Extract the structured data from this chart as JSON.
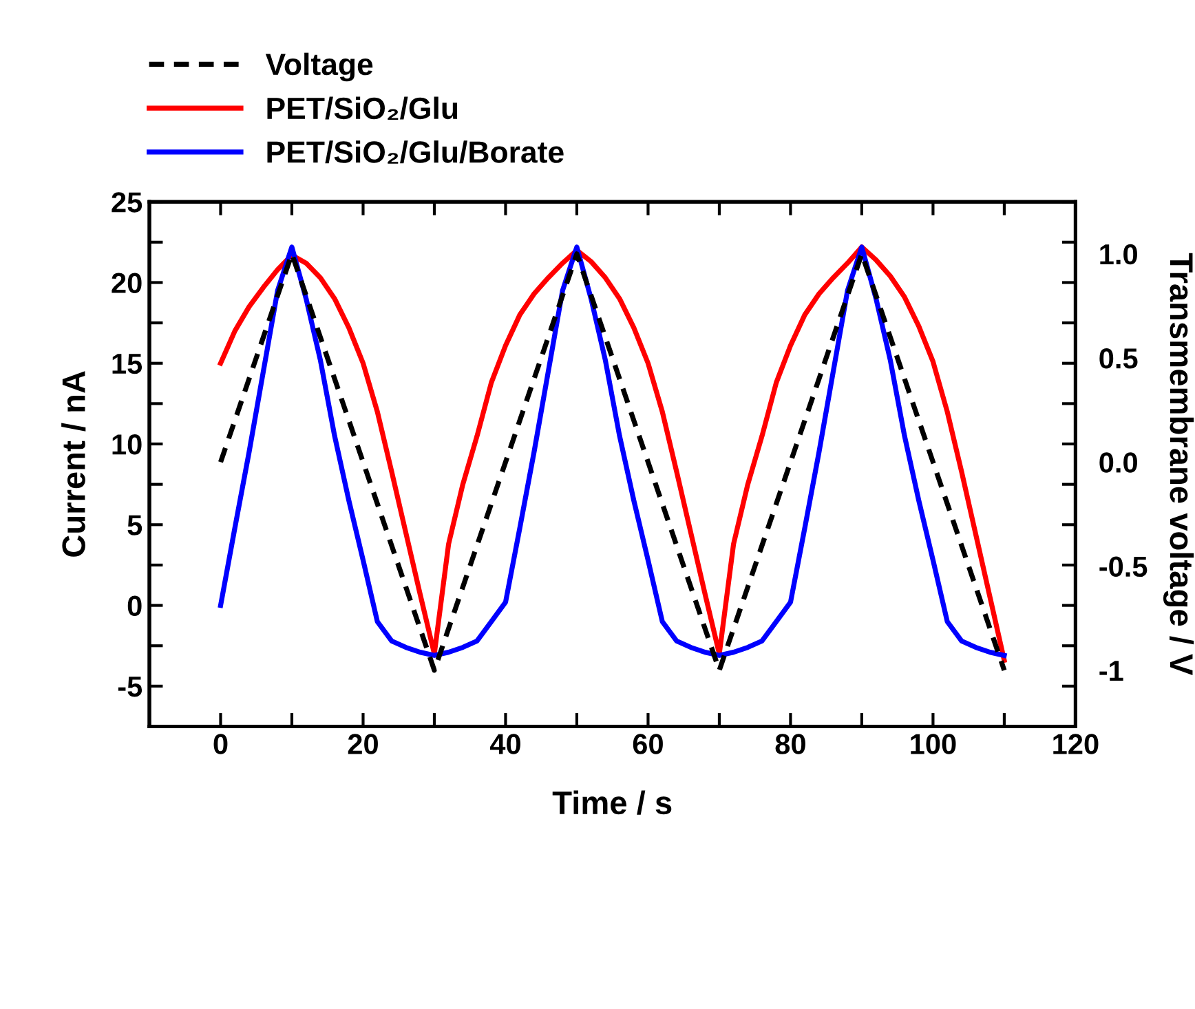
{
  "chart_data": {
    "type": "line",
    "xlabel": "Time / s",
    "ylabel": "Current / nA",
    "y2label": "Transmembrane voltage / V",
    "xlim": [
      -10,
      120
    ],
    "xticks": [
      0,
      {
        "value": 10,
        "label": null
      },
      20,
      {
        "value": 30,
        "label": null
      },
      40,
      {
        "value": 50,
        "label": null
      },
      60,
      {
        "value": 70,
        "label": null
      },
      80,
      {
        "value": 90,
        "label": null
      },
      100,
      {
        "value": 110,
        "label": null
      },
      120
    ],
    "ylim": [
      -7.5,
      25
    ],
    "yticks": [
      -5,
      {
        "value": -2.5,
        "label": null
      },
      0,
      {
        "value": 2.5,
        "label": null
      },
      5,
      {
        "value": 7.5,
        "label": null
      },
      10,
      {
        "value": 12.5,
        "label": null
      },
      15,
      {
        "value": 17.5,
        "label": null
      },
      20,
      {
        "value": 22.5,
        "label": null
      },
      25
    ],
    "y2lim": [
      -1.27,
      1.25
    ],
    "y2ticks": [
      {
        "value": -1,
        "label": "-1"
      },
      {
        "value": -0.5,
        "label": "-0.5"
      },
      {
        "value": 0,
        "label": "0.0"
      },
      {
        "value": 0.5,
        "label": "0.5"
      },
      {
        "value": 1,
        "label": "1.0"
      }
    ],
    "legend": "top left",
    "grid": false,
    "series": [
      {
        "name": "Voltage",
        "color": "#000000",
        "line_style": "dashed",
        "axis": "y2",
        "x": [
          0,
          10,
          30,
          50,
          70,
          90,
          110
        ],
        "values": [
          0,
          1,
          -1,
          1,
          -1,
          1,
          -1
        ]
      },
      {
        "name": "PET/SiO₂/Glu",
        "color": "#ff0000",
        "line_style": "solid",
        "x": [
          0,
          2,
          4,
          6,
          8,
          10,
          12,
          14,
          16,
          18,
          20,
          22,
          24,
          26,
          28,
          30,
          32,
          34,
          36,
          38,
          40,
          42,
          44,
          46,
          48,
          50,
          52,
          54,
          56,
          58,
          60,
          62,
          64,
          66,
          68,
          70,
          72,
          74,
          76,
          78,
          80,
          82,
          84,
          86,
          88,
          90,
          92,
          94,
          96,
          98,
          100,
          102,
          104,
          106,
          108,
          110
        ],
        "values": [
          15,
          17.0,
          18.5,
          19.7,
          20.8,
          21.7,
          21.2,
          20.3,
          19.0,
          17.2,
          15.0,
          12.0,
          8.3,
          4.5,
          0.7,
          -3.0,
          3.8,
          7.5,
          10.5,
          13.8,
          16.1,
          18.0,
          19.3,
          20.3,
          21.2,
          22.0,
          21.3,
          20.3,
          19.0,
          17.2,
          15.0,
          12.0,
          8.3,
          4.5,
          0.7,
          -3.0,
          3.8,
          7.5,
          10.5,
          13.8,
          16.1,
          18.0,
          19.3,
          20.3,
          21.2,
          22.2,
          21.4,
          20.4,
          19.1,
          17.3,
          15.1,
          12.0,
          8.3,
          4.4,
          0.5,
          -3.4
        ]
      },
      {
        "name": "PET/SiO₂/Glu/Borate",
        "color": "#0000ff",
        "line_style": "solid",
        "x": [
          0,
          2,
          4,
          6,
          8,
          10,
          12,
          14,
          16,
          18,
          20,
          22,
          24,
          26,
          28,
          30,
          32,
          34,
          36,
          38,
          40,
          42,
          44,
          46,
          48,
          50,
          52,
          54,
          56,
          58,
          60,
          62,
          64,
          66,
          68,
          70,
          72,
          74,
          76,
          78,
          80,
          82,
          84,
          86,
          88,
          90,
          92,
          94,
          96,
          98,
          100,
          102,
          104,
          106,
          108,
          110
        ],
        "values": [
          0,
          4.8,
          9.5,
          14.5,
          19.5,
          22.2,
          19,
          15.2,
          10.5,
          6.5,
          2.8,
          -1.0,
          -2.2,
          -2.6,
          -2.9,
          -3.1,
          -2.9,
          -2.6,
          -2.2,
          -1.0,
          0.2,
          4.8,
          9.5,
          14.5,
          19.5,
          22.2,
          19,
          15.2,
          10.5,
          6.5,
          2.8,
          -1.0,
          -2.2,
          -2.6,
          -2.9,
          -3.1,
          -2.9,
          -2.6,
          -2.2,
          -1.0,
          0.2,
          4.8,
          9.5,
          14.5,
          19.5,
          22.2,
          19,
          15.2,
          10.5,
          6.5,
          2.8,
          -1.0,
          -2.2,
          -2.6,
          -2.9,
          -3.1
        ]
      }
    ]
  }
}
